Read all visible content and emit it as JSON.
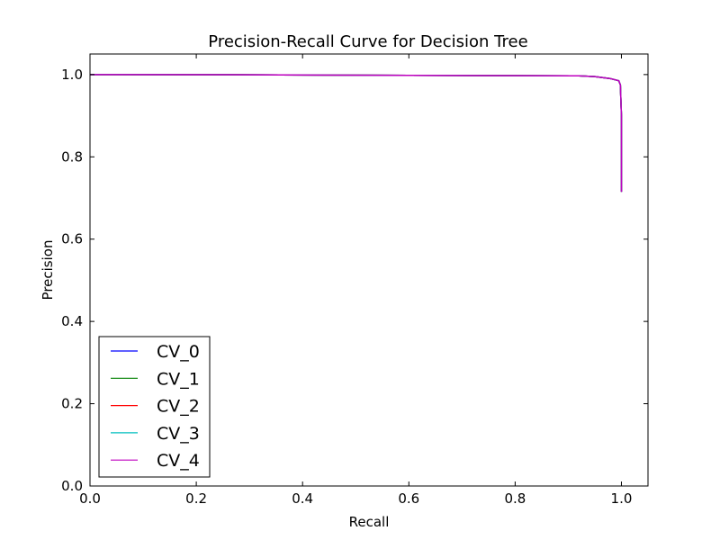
{
  "chart_data": {
    "type": "line",
    "title": "Precision-Recall Curve for Decision Tree",
    "xlabel": "Recall",
    "ylabel": "Precision",
    "xlim": [
      0.0,
      1.05
    ],
    "ylim": [
      0.0,
      1.05
    ],
    "xticks": [
      0.0,
      0.2,
      0.4,
      0.6,
      0.8,
      1.0
    ],
    "yticks": [
      0.0,
      0.2,
      0.4,
      0.6,
      0.8,
      1.0
    ],
    "xtick_labels": [
      "0.0",
      "0.2",
      "0.4",
      "0.6",
      "0.8",
      "1.0"
    ],
    "ytick_labels": [
      "0.0",
      "0.2",
      "0.4",
      "0.6",
      "0.8",
      "1.0"
    ],
    "grid": false,
    "legend_position": "lower-left",
    "series": [
      {
        "name": "CV_0",
        "color": "#0000ff",
        "x": [
          0.0,
          0.3,
          0.6,
          0.92,
          0.95,
          0.98,
          0.995,
          0.998,
          1.0,
          1.0
        ],
        "y": [
          1.0,
          0.9995,
          0.998,
          0.997,
          0.995,
          0.99,
          0.985,
          0.975,
          0.9,
          0.715
        ]
      },
      {
        "name": "CV_1",
        "color": "#008000",
        "x": [
          0.0,
          0.3,
          0.6,
          0.92,
          0.95,
          0.98,
          0.995,
          0.998,
          1.0,
          1.0
        ],
        "y": [
          1.0,
          0.9995,
          0.998,
          0.997,
          0.995,
          0.99,
          0.985,
          0.975,
          0.9,
          0.715
        ]
      },
      {
        "name": "CV_2",
        "color": "#ff0000",
        "x": [
          0.0,
          0.3,
          0.6,
          0.92,
          0.95,
          0.98,
          0.995,
          0.998,
          1.0,
          1.0
        ],
        "y": [
          1.0,
          0.9995,
          0.998,
          0.997,
          0.995,
          0.99,
          0.985,
          0.975,
          0.9,
          0.715
        ]
      },
      {
        "name": "CV_3",
        "color": "#00bfbf",
        "x": [
          0.0,
          0.3,
          0.6,
          0.92,
          0.95,
          0.98,
          0.995,
          0.998,
          1.0,
          1.0
        ],
        "y": [
          1.0,
          0.9995,
          0.998,
          0.997,
          0.995,
          0.99,
          0.985,
          0.975,
          0.9,
          0.715
        ]
      },
      {
        "name": "CV_4",
        "color": "#bf00bf",
        "x": [
          0.0,
          0.3,
          0.6,
          0.92,
          0.95,
          0.98,
          0.995,
          0.998,
          1.0,
          1.0
        ],
        "y": [
          1.0,
          0.9995,
          0.998,
          0.997,
          0.995,
          0.99,
          0.985,
          0.975,
          0.9,
          0.715
        ]
      }
    ]
  }
}
